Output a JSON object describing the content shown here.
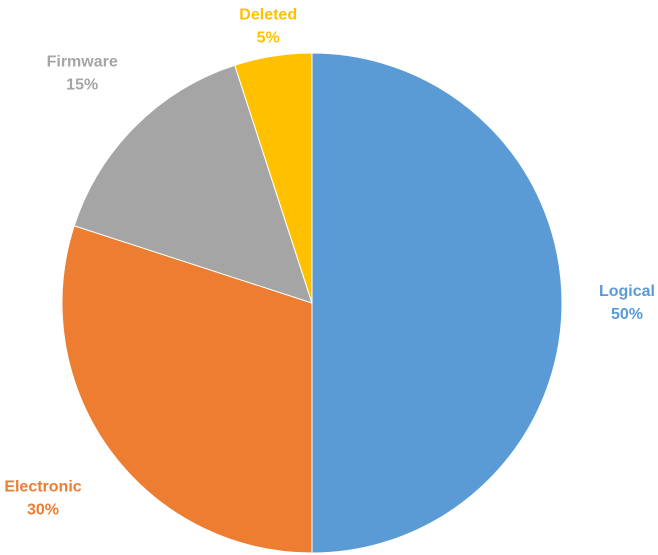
{
  "chart_data": {
    "type": "pie",
    "categories": [
      "Logical",
      "Electronic",
      "Firmware",
      "Deleted"
    ],
    "values": [
      50,
      30,
      15,
      5
    ],
    "value_labels": [
      "50%",
      "30%",
      "15%",
      "5%"
    ],
    "colors": [
      "#5b9bd5",
      "#ed7d31",
      "#a5a5a5",
      "#ffc000"
    ]
  }
}
